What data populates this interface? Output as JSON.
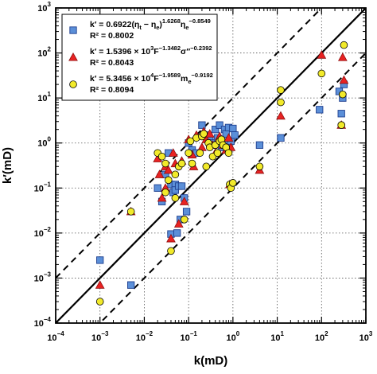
{
  "chart_data": {
    "type": "scatter",
    "scale": "log-log",
    "xlabel": "k(mD)",
    "ylabel": "k′(mD)",
    "xlim": [
      0.0001,
      1000
    ],
    "ylim": [
      0.0001,
      1000
    ],
    "x_ticks": [
      {
        "value": 0.0001,
        "base": "10",
        "exp": "−4"
      },
      {
        "value": 0.001,
        "base": "10",
        "exp": "−3"
      },
      {
        "value": 0.01,
        "base": "10",
        "exp": "−2"
      },
      {
        "value": 0.1,
        "base": "10",
        "exp": "−1"
      },
      {
        "value": 1,
        "base": "10",
        "exp": "0"
      },
      {
        "value": 10,
        "base": "10",
        "exp": "1"
      },
      {
        "value": 100,
        "base": "10",
        "exp": "2"
      },
      {
        "value": 1000,
        "base": "10",
        "exp": "3"
      }
    ],
    "y_ticks": [
      {
        "value": 0.0001,
        "base": "10",
        "exp": "−4"
      },
      {
        "value": 0.001,
        "base": "10",
        "exp": "−3"
      },
      {
        "value": 0.01,
        "base": "10",
        "exp": "−2"
      },
      {
        "value": 0.1,
        "base": "10",
        "exp": "−1"
      },
      {
        "value": 1,
        "base": "10",
        "exp": "0"
      },
      {
        "value": 10,
        "base": "10",
        "exp": "1"
      },
      {
        "value": 100,
        "base": "10",
        "exp": "2"
      },
      {
        "value": 1000,
        "base": "10",
        "exp": "3"
      }
    ],
    "grid": true,
    "legend_position": "top-left",
    "reference_lines": [
      {
        "kind": "1:1",
        "factor": 1,
        "style": "solid"
      },
      {
        "kind": "upper bound",
        "factor": 10,
        "style": "dashed"
      },
      {
        "kind": "lower bound",
        "factor": 0.1,
        "style": "dashed"
      }
    ],
    "series": [
      {
        "marker": "square",
        "color": "#5b8fd8",
        "equation": {
          "pre": "k′ = 0.6922(η",
          "sub1": "t",
          "mid": " − η",
          "sub2": "e",
          "post": ")",
          "sup1": "1.6268",
          "post2": "η",
          "sub3": "e",
          "sup2": "−0.8549"
        },
        "r2": "R² = 0.8002",
        "points": [
          [
            0.001,
            0.0025
          ],
          [
            0.005,
            0.0007
          ],
          [
            0.02,
            0.1
          ],
          [
            0.025,
            0.05
          ],
          [
            0.03,
            0.2
          ],
          [
            0.035,
            0.6
          ],
          [
            0.04,
            0.12
          ],
          [
            0.04,
            0.0095
          ],
          [
            0.045,
            0.08
          ],
          [
            0.05,
            0.12
          ],
          [
            0.05,
            0.09
          ],
          [
            0.055,
            0.01
          ],
          [
            0.06,
            0.11
          ],
          [
            0.065,
            0.02
          ],
          [
            0.07,
            0.11
          ],
          [
            0.08,
            0.06
          ],
          [
            0.09,
            0.03
          ],
          [
            0.1,
            1.0
          ],
          [
            0.12,
            0.7
          ],
          [
            0.15,
            0.6
          ],
          [
            0.2,
            2.5
          ],
          [
            0.25,
            1.5
          ],
          [
            0.3,
            1.2
          ],
          [
            0.35,
            1.0
          ],
          [
            0.4,
            2.0
          ],
          [
            0.45,
            1.3
          ],
          [
            0.5,
            2.5
          ],
          [
            0.55,
            0.8
          ],
          [
            0.6,
            1.2
          ],
          [
            0.65,
            2.0
          ],
          [
            0.7,
            1.6
          ],
          [
            0.75,
            1.0
          ],
          [
            0.8,
            2.2
          ],
          [
            0.9,
            1.1
          ],
          [
            1.0,
            2.1
          ],
          [
            1.1,
            1.5
          ],
          [
            4,
            0.9
          ],
          [
            12,
            1.3
          ],
          [
            90,
            5.5
          ],
          [
            250,
            14
          ],
          [
            280,
            4.5
          ],
          [
            300,
            10
          ],
          [
            320,
            20
          ]
        ]
      },
      {
        "marker": "triangle",
        "color": "#e82222",
        "equation": {
          "pre": "k′ = 1.5396 × 10",
          "sup1": "3",
          "mid": "F",
          "sup2": "−1.3482",
          "post": "σ″",
          "sup3": "−0.2392"
        },
        "r2": "R² = 0.8043",
        "points": [
          [
            0.001,
            0.0007
          ],
          [
            0.005,
            0.03
          ],
          [
            0.02,
            0.45
          ],
          [
            0.022,
            0.2
          ],
          [
            0.025,
            0.06
          ],
          [
            0.03,
            0.3
          ],
          [
            0.03,
            0.1
          ],
          [
            0.035,
            0.25
          ],
          [
            0.04,
            0.0075
          ],
          [
            0.045,
            0.6
          ],
          [
            0.05,
            0.35
          ],
          [
            0.06,
            0.016
          ],
          [
            0.07,
            0.4
          ],
          [
            0.08,
            0.05
          ],
          [
            0.1,
            1.2
          ],
          [
            0.12,
            0.55
          ],
          [
            0.13,
            0.3
          ],
          [
            0.15,
            1.5
          ],
          [
            0.2,
            0.8
          ],
          [
            0.22,
            1.8
          ],
          [
            0.25,
            1.2
          ],
          [
            0.3,
            1.6
          ],
          [
            0.35,
            0.9
          ],
          [
            0.4,
            0.6
          ],
          [
            0.45,
            1.1
          ],
          [
            0.5,
            1.4
          ],
          [
            0.6,
            0.9
          ],
          [
            0.7,
            0.7
          ],
          [
            0.8,
            1.3
          ],
          [
            0.85,
            0.12
          ],
          [
            0.9,
            0.8
          ],
          [
            4,
            0.25
          ],
          [
            12,
            4.0
          ],
          [
            100,
            90
          ],
          [
            280,
            2.5
          ],
          [
            300,
            80
          ],
          [
            320,
            25
          ]
        ]
      },
      {
        "marker": "circle",
        "color": "#f2ea2a",
        "equation": {
          "pre": "k′ = 5.3456 × 10",
          "sup1": "4",
          "mid": "F",
          "sup2": "−1.9589",
          "post": "m",
          "sub1": "e",
          "sup3": "−0.9192"
        },
        "r2": "R² = 0.8094",
        "points": [
          [
            0.001,
            0.0003
          ],
          [
            0.005,
            0.03
          ],
          [
            0.02,
            0.6
          ],
          [
            0.025,
            0.5
          ],
          [
            0.03,
            0.35
          ],
          [
            0.03,
            0.08
          ],
          [
            0.035,
            0.15
          ],
          [
            0.04,
            0.004
          ],
          [
            0.05,
            0.2
          ],
          [
            0.05,
            0.06
          ],
          [
            0.06,
            0.3
          ],
          [
            0.07,
            0.35
          ],
          [
            0.08,
            0.02
          ],
          [
            0.1,
            0.6
          ],
          [
            0.11,
            1.1
          ],
          [
            0.12,
            0.35
          ],
          [
            0.15,
            1.3
          ],
          [
            0.18,
            0.6
          ],
          [
            0.2,
            1.4
          ],
          [
            0.22,
            1.6
          ],
          [
            0.25,
            0.3
          ],
          [
            0.28,
            1.0
          ],
          [
            0.3,
            0.8
          ],
          [
            0.35,
            0.5
          ],
          [
            0.4,
            0.9
          ],
          [
            0.45,
            0.6
          ],
          [
            0.5,
            1.1
          ],
          [
            0.55,
            1.2
          ],
          [
            0.6,
            0.9
          ],
          [
            0.7,
            0.8
          ],
          [
            0.8,
            0.6
          ],
          [
            0.85,
            0.12
          ],
          [
            0.9,
            0.1
          ],
          [
            1.0,
            0.13
          ],
          [
            4,
            0.3
          ],
          [
            12,
            8
          ],
          [
            12,
            15
          ],
          [
            100,
            35
          ],
          [
            280,
            2.5
          ],
          [
            300,
            12
          ],
          [
            320,
            150
          ]
        ]
      }
    ]
  }
}
